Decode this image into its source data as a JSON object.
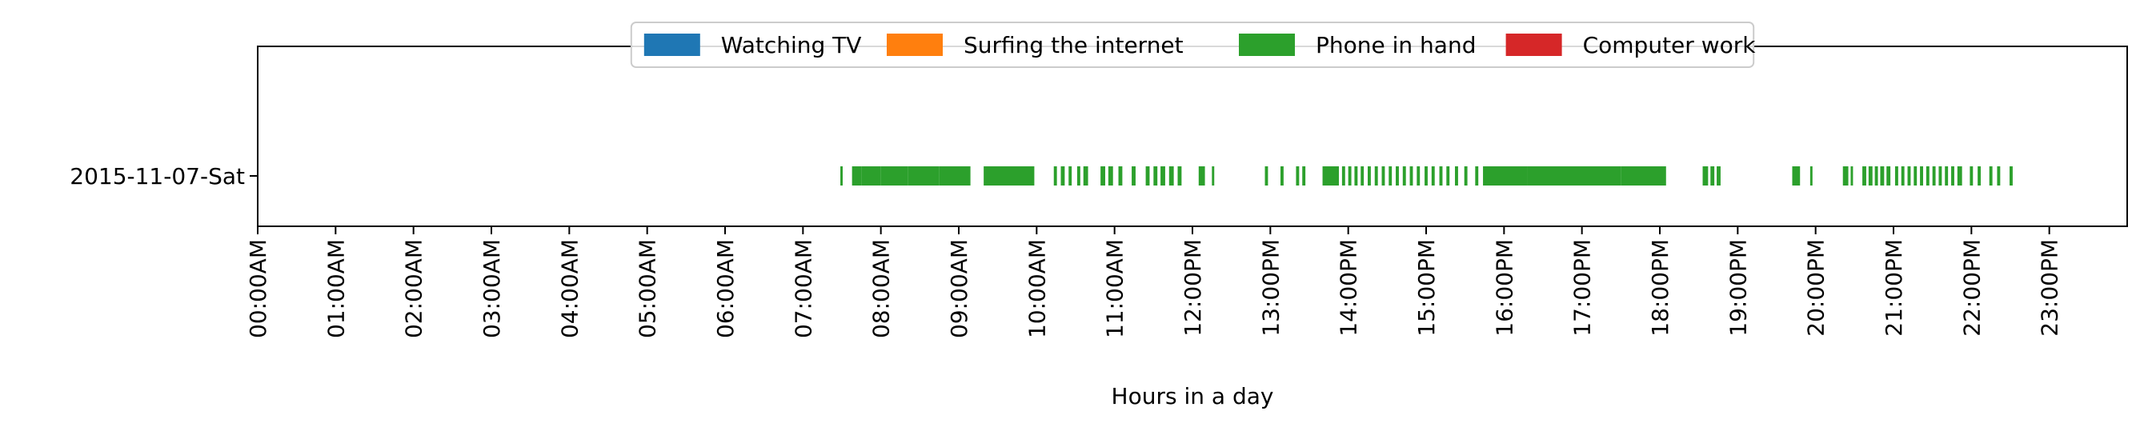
{
  "chart_data": {
    "type": "timeline",
    "xlabel": "Hours in a day",
    "xlim": [
      0,
      24
    ],
    "x_unit": "hour of day",
    "categories": [
      "2015-11-07-Sat"
    ],
    "x_tick_labels": [
      "00:00AM",
      "01:00AM",
      "02:00AM",
      "03:00AM",
      "04:00AM",
      "05:00AM",
      "06:00AM",
      "07:00AM",
      "08:00AM",
      "09:00AM",
      "10:00AM",
      "11:00AM",
      "12:00PM",
      "13:00PM",
      "14:00PM",
      "15:00PM",
      "16:00PM",
      "17:00PM",
      "18:00PM",
      "19:00PM",
      "20:00PM",
      "21:00PM",
      "22:00PM",
      "23:00PM"
    ],
    "legend": {
      "placement": "upper center",
      "entries": [
        {
          "label": "Watching TV",
          "color": "#1f77b4"
        },
        {
          "label": "Surfing the internet",
          "color": "#ff7f0e"
        },
        {
          "label": "Phone in hand",
          "color": "#2ca02c"
        },
        {
          "label": "Computer work",
          "color": "#d62728"
        }
      ]
    },
    "series": [
      {
        "name": "Watching TV",
        "color": "#1f77b4",
        "intervals": []
      },
      {
        "name": "Surfing the internet",
        "color": "#ff7f0e",
        "intervals": []
      },
      {
        "name": "Phone in hand",
        "color": "#2ca02c",
        "intervals": [
          [
            7.48,
            7.51
          ],
          [
            7.63,
            7.75
          ],
          [
            7.75,
            8.0
          ],
          [
            8.0,
            8.35
          ],
          [
            8.35,
            8.75
          ],
          [
            8.75,
            9.15
          ],
          [
            9.32,
            9.97
          ],
          [
            10.22,
            10.26
          ],
          [
            10.31,
            10.36
          ],
          [
            10.41,
            10.45
          ],
          [
            10.52,
            10.56
          ],
          [
            10.6,
            10.66
          ],
          [
            10.82,
            10.88
          ],
          [
            10.92,
            10.98
          ],
          [
            11.05,
            11.1
          ],
          [
            11.22,
            11.27
          ],
          [
            11.4,
            11.45
          ],
          [
            11.5,
            11.55
          ],
          [
            11.59,
            11.65
          ],
          [
            11.7,
            11.76
          ],
          [
            11.81,
            11.86
          ],
          [
            12.08,
            12.16
          ],
          [
            12.25,
            12.28
          ],
          [
            12.93,
            12.97
          ],
          [
            13.13,
            13.17
          ],
          [
            13.33,
            13.37
          ],
          [
            13.41,
            13.45
          ],
          [
            13.67,
            13.88
          ],
          [
            13.92,
            13.96
          ],
          [
            14.0,
            14.04
          ],
          [
            14.08,
            14.12
          ],
          [
            14.16,
            14.2
          ],
          [
            14.25,
            14.29
          ],
          [
            14.34,
            14.38
          ],
          [
            14.43,
            14.47
          ],
          [
            14.52,
            14.56
          ],
          [
            14.61,
            14.65
          ],
          [
            14.7,
            14.74
          ],
          [
            14.79,
            14.83
          ],
          [
            14.88,
            14.92
          ],
          [
            14.98,
            15.02
          ],
          [
            15.07,
            15.11
          ],
          [
            15.17,
            15.21
          ],
          [
            15.26,
            15.3
          ],
          [
            15.37,
            15.41
          ],
          [
            15.49,
            15.53
          ],
          [
            15.63,
            15.67
          ],
          [
            15.73,
            16.3
          ],
          [
            16.3,
            17.5
          ],
          [
            17.5,
            18.08
          ],
          [
            18.55,
            18.62
          ],
          [
            18.65,
            18.7
          ],
          [
            18.73,
            18.78
          ],
          [
            19.7,
            19.8
          ],
          [
            19.93,
            19.96
          ],
          [
            20.35,
            20.42
          ],
          [
            20.45,
            20.48
          ],
          [
            20.6,
            20.65
          ],
          [
            20.68,
            20.73
          ],
          [
            20.76,
            20.8
          ],
          [
            20.83,
            20.88
          ],
          [
            20.91,
            20.96
          ],
          [
            21.02,
            21.06
          ],
          [
            21.1,
            21.14
          ],
          [
            21.18,
            21.22
          ],
          [
            21.26,
            21.3
          ],
          [
            21.34,
            21.38
          ],
          [
            21.42,
            21.46
          ],
          [
            21.5,
            21.54
          ],
          [
            21.58,
            21.62
          ],
          [
            21.66,
            21.7
          ],
          [
            21.74,
            21.78
          ],
          [
            21.82,
            21.88
          ],
          [
            21.98,
            22.02
          ],
          [
            22.08,
            22.12
          ],
          [
            22.23,
            22.27
          ],
          [
            22.33,
            22.37
          ],
          [
            22.49,
            22.53
          ]
        ]
      },
      {
        "name": "Computer work",
        "color": "#d62728",
        "intervals": []
      }
    ],
    "grid": false
  }
}
